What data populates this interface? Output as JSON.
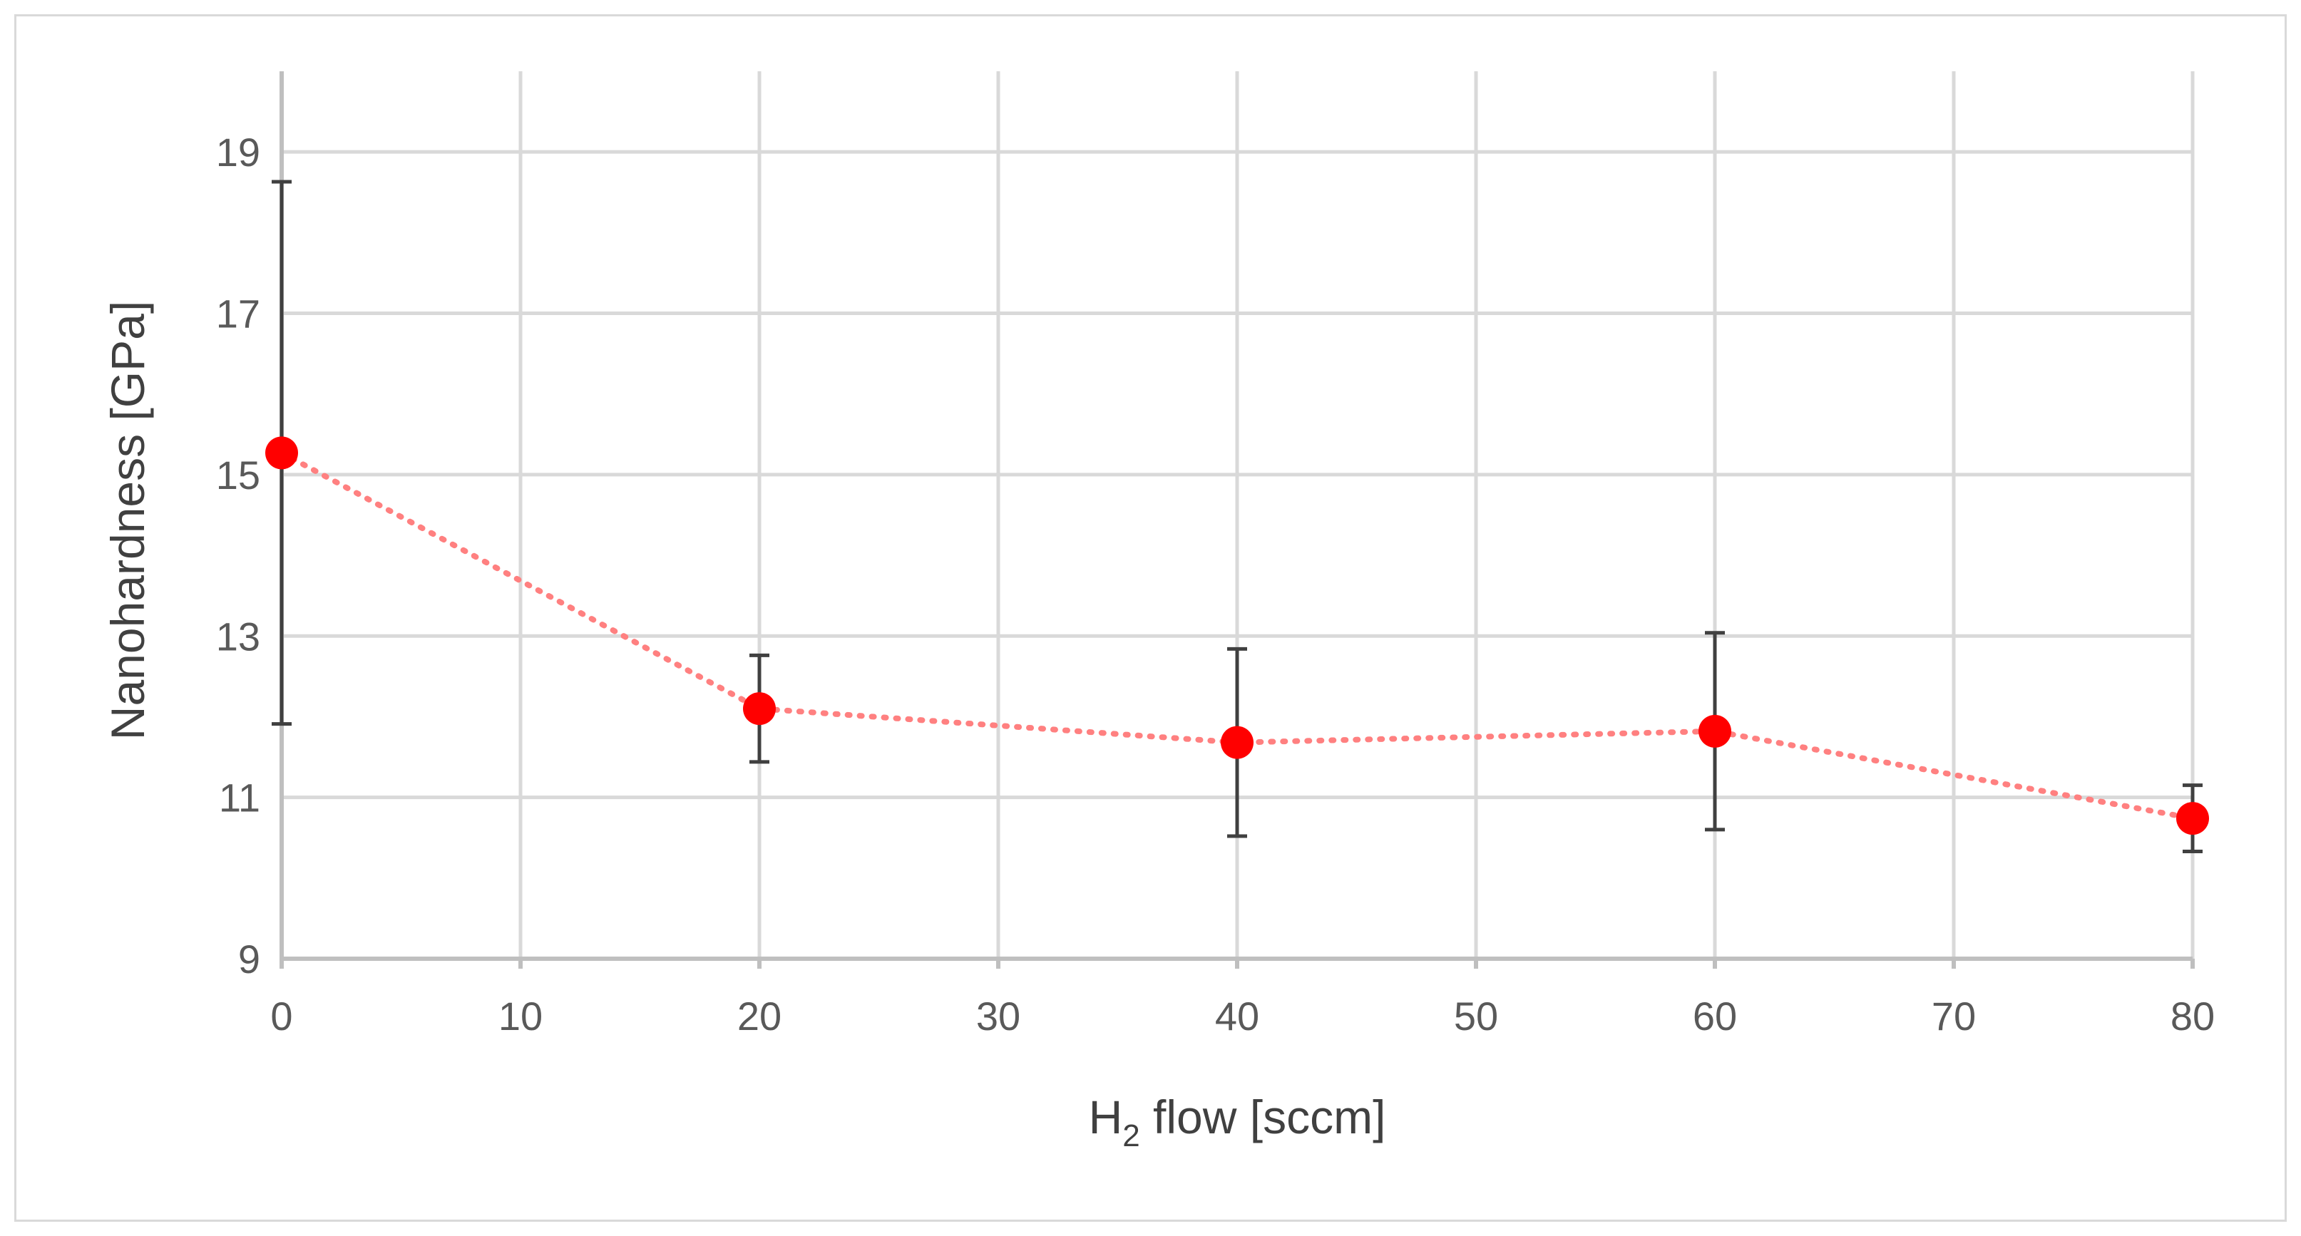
{
  "chart_data": {
    "type": "line",
    "title": "",
    "xlabel": {
      "prefix": "H",
      "subscript": "2",
      "suffix": " flow [sccm]"
    },
    "ylabel": "Nanohardness [GPa]",
    "xlim": [
      0,
      80
    ],
    "ylim": [
      9,
      20
    ],
    "x_ticks": [
      0,
      10,
      20,
      30,
      40,
      50,
      60,
      70,
      80
    ],
    "y_ticks": [
      9,
      11,
      13,
      15,
      17,
      19
    ],
    "grid": true,
    "legend": "none",
    "series": [
      {
        "line_style": "dotted",
        "color": "#ff8080",
        "marker_color": "#ff0000",
        "x": [
          0,
          20,
          40,
          60,
          80
        ],
        "y": [
          15.27,
          12.1,
          11.68,
          11.82,
          10.74
        ],
        "error": [
          3.36,
          0.66,
          1.16,
          1.22,
          0.41
        ]
      }
    ]
  },
  "colors": {
    "marker": "#ff0000",
    "line": "#ff8080",
    "error_bar": "#404040",
    "grid": "#d9d9d9"
  }
}
